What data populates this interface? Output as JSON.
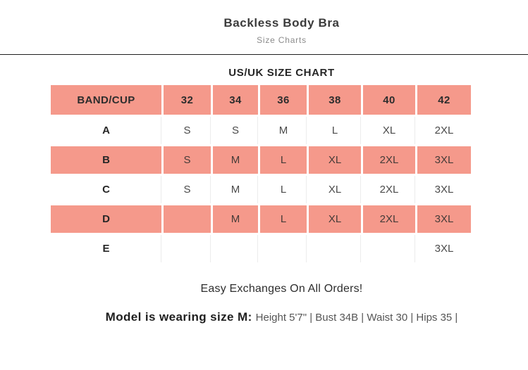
{
  "header": {
    "title": "Backless Body Bra",
    "subtitle": "Size Charts"
  },
  "chart_data": {
    "type": "table",
    "title": "US/UK SIZE CHART",
    "columns": [
      "BAND/CUP",
      "32",
      "34",
      "36",
      "38",
      "40",
      "42"
    ],
    "rows": [
      {
        "band": "A",
        "sizes": [
          "S",
          "S",
          "M",
          "L",
          "XL",
          "2XL"
        ],
        "highlighted": false
      },
      {
        "band": "B",
        "sizes": [
          "S",
          "M",
          "L",
          "XL",
          "2XL",
          "3XL"
        ],
        "highlighted": true
      },
      {
        "band": "C",
        "sizes": [
          "S",
          "M",
          "L",
          "XL",
          "2XL",
          "3XL"
        ],
        "highlighted": false
      },
      {
        "band": "D",
        "sizes": [
          "",
          "M",
          "L",
          "XL",
          "2XL",
          "3XL"
        ],
        "highlighted": true
      },
      {
        "band": "E",
        "sizes": [
          "",
          "",
          "",
          "",
          "",
          "3XL"
        ],
        "highlighted": false
      }
    ],
    "header_row_highlighted": true,
    "layout_hints": {
      "highlight_pattern": "header and rows B, D shaded",
      "grid": "white gaps between cells"
    }
  },
  "footer": {
    "exchange_note": "Easy Exchanges On All Orders!",
    "model_label": "Model is wearing size M:",
    "model_details": "Height 5'7\" | Bust 34B | Waist 30 | Hips 35 |"
  },
  "colors": {
    "highlight": "#f5998b",
    "divider": "#1f1f1f",
    "text_dark": "#2d2d2d",
    "text_gray": "#8b8b8b"
  }
}
